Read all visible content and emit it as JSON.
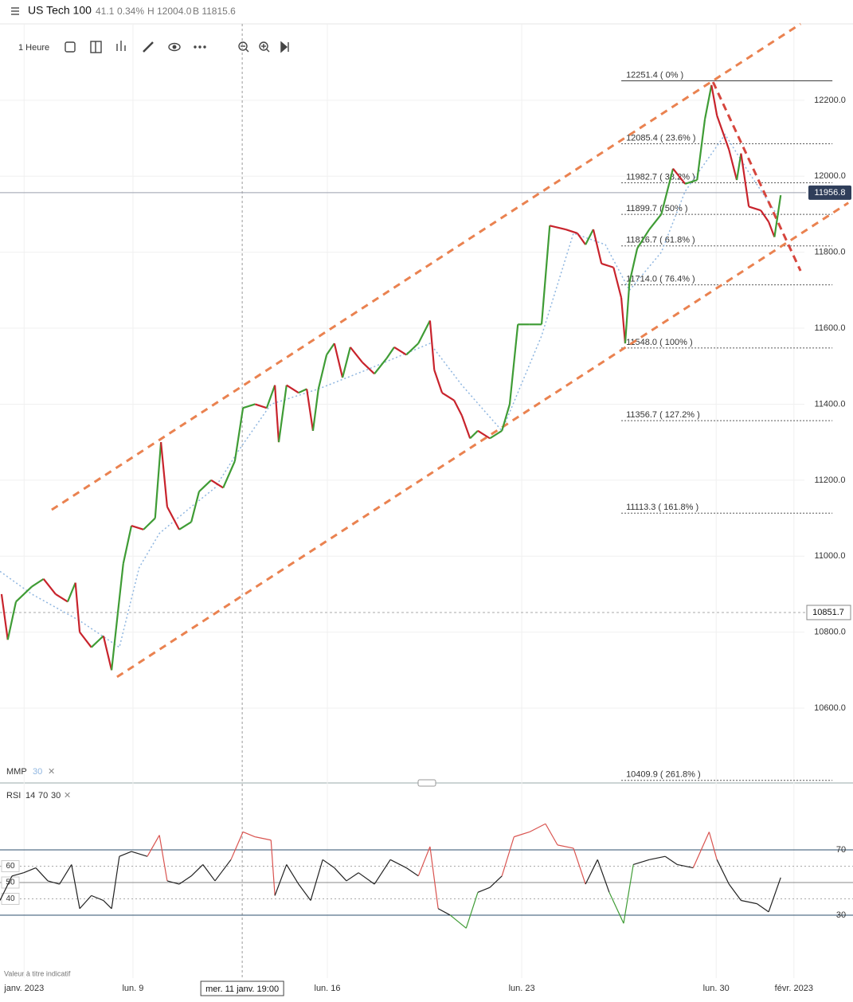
{
  "header": {
    "symbol": "US Tech 100",
    "change": "41.1",
    "change_pct": "0.34%",
    "high": "H 12004.0",
    "low": "B 11815.6"
  },
  "toolbar": {
    "interval": "1 Heure"
  },
  "footer_note": "Valeur à titre indicatif",
  "chart_data": [
    {
      "type": "line",
      "x": [
        -3.38,
        -3.22,
        -3.01,
        -2.6,
        -2.3,
        -1.99,
        -1.68,
        -1.48,
        -1.37,
        -1.07,
        -0.76,
        -0.55,
        -0.39,
        -0.25,
        -0.04,
        0.27,
        0.57,
        0.72,
        0.88,
        1.19,
        1.5,
        1.7,
        2.01,
        2.32,
        2.62,
        2.83,
        3.14,
        3.44,
        3.65,
        3.75,
        3.95,
        4.26,
        4.47,
        4.63,
        4.77,
        4.98,
        5.18,
        5.39,
        5.59,
        5.9,
        6.21,
        6.52,
        6.72,
        7.03,
        7.34,
        7.64,
        7.75,
        7.95,
        8.26,
        8.46,
        8.67,
        8.87,
        9.18,
        9.49,
        9.69,
        9.9,
        10.2,
        10.51,
        10.72,
        11.13,
        11.43,
        11.64,
        11.84,
        12.05,
        12.36,
        12.56,
        12.66,
        12.77,
        12.97,
        13.28,
        13.59,
        13.89,
        14.2,
        14.51,
        14.71,
        14.88,
        15.02,
        15.33,
        15.53,
        15.64,
        15.84,
        16.15,
        16.35,
        16.5,
        16.66
      ],
      "series": [
        {
          "values": [
            10900,
            10780,
            10880,
            10920,
            10940,
            10900,
            10880,
            10930,
            10800,
            10760,
            10790,
            10700,
            10850,
            10980,
            11080,
            11070,
            11100,
            11300,
            11130,
            11070,
            11090,
            11170,
            11200,
            11180,
            11250,
            11390,
            11400,
            11390,
            11450,
            11300,
            11450,
            11430,
            11440,
            11330,
            11440,
            11530,
            11560,
            11470,
            11550,
            11510,
            11480,
            11520,
            11550,
            11530,
            11560,
            11620,
            11490,
            11430,
            11410,
            11370,
            11310,
            11330,
            11310,
            11330,
            11400,
            11610,
            11610,
            11610,
            11870,
            11860,
            11850,
            11820,
            11860,
            11770,
            11760,
            11680,
            11560,
            11720,
            11810,
            11860,
            11900,
            12020,
            11980,
            11990,
            12150,
            12240,
            12160,
            12070,
            11990,
            12060,
            11920,
            11910,
            11880,
            11840,
            11950
          ],
          "up_color": "#3f9c35",
          "down_color": "#c8232c"
        },
        {
          "name": "MMP",
          "period": 30,
          "color": "#8fb6e0",
          "x": [
            -3.42,
            -2.6,
            -1.37,
            -0.35,
            0.16,
            0.68,
            1.5,
            2.11,
            2.73,
            3.55,
            4.77,
            6.0,
            7.64,
            8.46,
            9.49,
            10.51,
            11.33,
            12.15,
            12.77,
            13.59,
            14.2,
            15.23,
            15.84,
            16.56
          ],
          "values": [
            10960,
            10900,
            10830,
            10760,
            10970,
            11060,
            11130,
            11180,
            11280,
            11400,
            11440,
            11490,
            11560,
            11450,
            11330,
            11580,
            11850,
            11820,
            11700,
            11800,
            11960,
            12110,
            12010,
            11900
          ]
        }
      ],
      "xlim": [
        -3.42,
        17.27
      ],
      "xticks": [
        {
          "value": -2.8,
          "label": "janv. 2023"
        },
        {
          "value": 0,
          "label": "lun. 9"
        },
        {
          "value": 5,
          "label": "lun. 16"
        },
        {
          "value": 10,
          "label": "lun. 23"
        },
        {
          "value": 15,
          "label": "lun. 30"
        },
        {
          "value": 17,
          "label": "févr. 2023"
        }
      ],
      "ylim": [
        10403,
        12401
      ],
      "yticks": [
        {
          "value": 10600,
          "label": "10600.0"
        },
        {
          "value": 10800,
          "label": "10800.0"
        },
        {
          "value": 11000,
          "label": "11000.0"
        },
        {
          "value": 11200,
          "label": "11200.0"
        },
        {
          "value": 11400,
          "label": "11400.0"
        },
        {
          "value": 11600,
          "label": "11600.0"
        },
        {
          "value": 11800,
          "label": "11800.0"
        },
        {
          "value": 12000,
          "label": "12000.0"
        },
        {
          "value": 12200,
          "label": "12200.0"
        }
      ],
      "grid": true,
      "channel_lines": [
        {
          "x": [
            -2.09,
            17.17
          ],
          "y": [
            11122,
            12401
          ],
          "color": "#ea8250"
        },
        {
          "x": [
            -0.41,
            18.4
          ],
          "y": [
            10682,
            11930
          ],
          "color": "#ea8250"
        }
      ],
      "trend_line": {
        "x": [
          14.92,
          17.17
        ],
        "y": [
          12248,
          11751
        ],
        "color": "#d6453d"
      },
      "fib_x": [
        12.56,
        17.99
      ],
      "fib_levels": [
        {
          "value": 12251.4,
          "label": "12251.4 ( 0% )"
        },
        {
          "value": 12085.4,
          "label": "12085.4 ( 23.6% )"
        },
        {
          "value": 11982.7,
          "label": "11982.7 ( 38.2% )"
        },
        {
          "value": 11899.7,
          "label": "11899.7 ( 50% )"
        },
        {
          "value": 11816.7,
          "label": "11816.7 ( 61.8% )"
        },
        {
          "value": 11714.0,
          "label": "11714.0 ( 76.4% )"
        },
        {
          "value": 11548.0,
          "label": "11548.0 ( 100% )"
        },
        {
          "value": 11356.7,
          "label": "11356.7 ( 127.2% )"
        },
        {
          "value": 11113.3,
          "label": "11113.3 ( 161.8% )"
        },
        {
          "value": 10409.9,
          "label": "10409.9 ( 261.8% )"
        }
      ],
      "last_price": 11956.8,
      "marker_price": 10851.7,
      "crosshair": {
        "x": 2.81,
        "label": "mer. 11 janv. 19:00"
      }
    },
    {
      "type": "line",
      "title": "RSI",
      "params": [
        14,
        70,
        30
      ],
      "x": [
        -3.42,
        -3.11,
        -2.81,
        -2.5,
        -2.19,
        -1.89,
        -1.58,
        -1.37,
        -1.07,
        -0.76,
        -0.55,
        -0.35,
        -0.04,
        0.37,
        0.68,
        0.88,
        1.19,
        1.5,
        1.8,
        2.11,
        2.52,
        2.83,
        3.14,
        3.55,
        3.65,
        3.95,
        4.26,
        4.57,
        4.88,
        5.18,
        5.49,
        5.8,
        6.21,
        6.62,
        7.03,
        7.34,
        7.64,
        7.85,
        8.16,
        8.57,
        8.87,
        9.18,
        9.49,
        9.8,
        10.2,
        10.61,
        10.92,
        11.33,
        11.64,
        11.95,
        12.25,
        12.62,
        12.87,
        13.28,
        13.69,
        14.0,
        14.41,
        14.82,
        15.02,
        15.33,
        15.64,
        16.05,
        16.35,
        16.66
      ],
      "values": [
        39,
        54,
        56,
        59,
        51,
        49,
        61,
        34,
        42,
        39,
        34,
        66,
        69,
        66,
        79,
        51,
        49,
        54,
        61,
        51,
        64,
        81,
        78,
        76,
        42,
        61,
        49,
        39,
        64,
        59,
        51,
        56,
        49,
        64,
        59,
        54,
        72,
        34,
        30,
        22,
        44,
        47,
        54,
        78,
        81,
        86,
        73,
        71,
        49,
        64,
        44,
        25,
        61,
        64,
        66,
        61,
        59,
        81,
        64,
        49,
        39,
        37,
        32,
        53
      ],
      "color": "#222222",
      "overbought_color": "#d9534f",
      "oversold_color": "#3f9c35",
      "levels": [
        70,
        30
      ],
      "guides": [
        60,
        50,
        40
      ],
      "ylim": [
        0.2,
        107.6
      ]
    }
  ]
}
